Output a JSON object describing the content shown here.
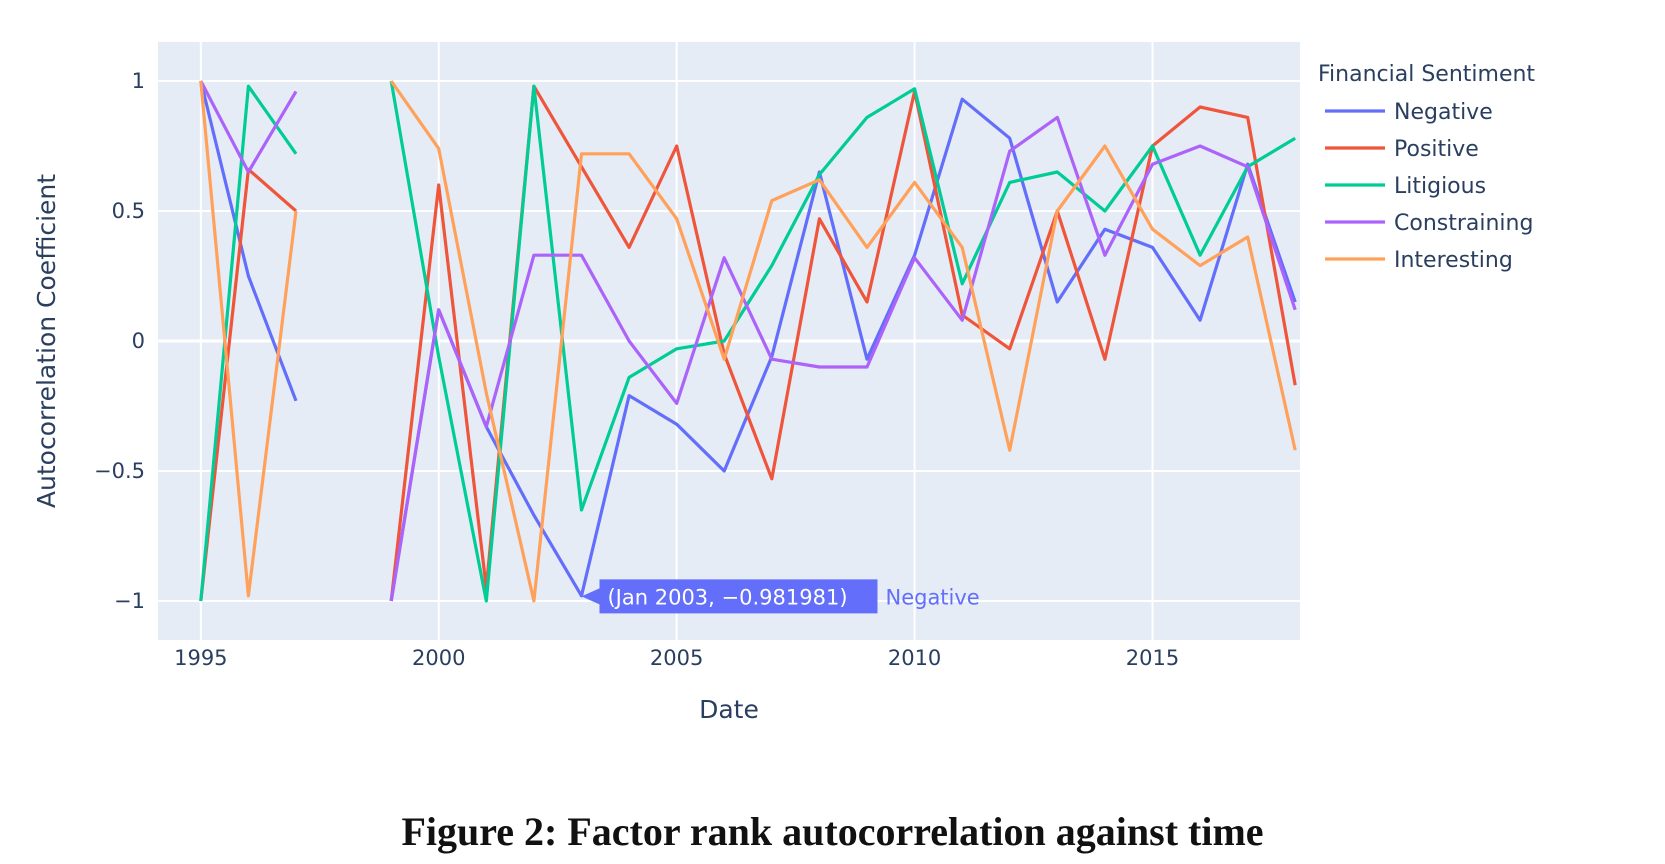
{
  "caption": "Figure 2: Factor rank autocorrelation against time",
  "chart_data": {
    "type": "line",
    "xlabel": "Date",
    "ylabel": "Autocorrelation Coefficient",
    "xlim": [
      1994.1,
      2018.1
    ],
    "ylim": [
      -1.15,
      1.15
    ],
    "xticks": [
      1995,
      2000,
      2005,
      2010,
      2015
    ],
    "xtick_labels": [
      "1995",
      "2000",
      "2005",
      "2010",
      "2015"
    ],
    "yticks": [
      1,
      0.5,
      0,
      -0.5,
      -1
    ],
    "ytick_labels": [
      "1",
      "0.5",
      "0",
      "−0.5",
      "−1"
    ],
    "grid": true,
    "legend": {
      "title": "Financial Sentiment",
      "position": "right"
    },
    "x": [
      1995,
      1996,
      1997,
      1998,
      1999,
      2000,
      2001,
      2002,
      2003,
      2004,
      2005,
      2006,
      2007,
      2008,
      2009,
      2010,
      2011,
      2012,
      2013,
      2014,
      2015,
      2016,
      2017,
      2018
    ],
    "series": [
      {
        "name": "Negative",
        "color": "#636efa",
        "values": [
          1.0,
          0.25,
          -0.23,
          null,
          -1.0,
          0.12,
          -0.33,
          -0.67,
          -0.98,
          -0.21,
          -0.32,
          -0.5,
          -0.06,
          0.65,
          -0.07,
          0.33,
          0.93,
          0.78,
          0.15,
          0.43,
          0.36,
          0.08,
          0.68,
          0.15
        ]
      },
      {
        "name": "Positive",
        "color": "#ef553b",
        "values": [
          -1.0,
          0.66,
          0.5,
          null,
          -1.0,
          0.6,
          -0.95,
          0.98,
          0.67,
          0.36,
          0.75,
          -0.05,
          -0.53,
          0.47,
          0.15,
          0.96,
          0.1,
          -0.03,
          0.5,
          -0.07,
          0.75,
          0.9,
          0.86,
          -0.17
        ]
      },
      {
        "name": "Litigious",
        "color": "#00cc96",
        "values": [
          -1.0,
          0.98,
          0.72,
          null,
          1.0,
          -0.06,
          -1.0,
          0.98,
          -0.65,
          -0.14,
          -0.03,
          0.0,
          0.29,
          0.64,
          0.86,
          0.97,
          0.22,
          0.61,
          0.65,
          0.5,
          0.75,
          0.33,
          0.67,
          0.78
        ]
      },
      {
        "name": "Constraining",
        "color": "#ab63fa",
        "values": [
          1.0,
          0.65,
          0.96,
          null,
          -1.0,
          0.12,
          -0.33,
          0.33,
          0.33,
          0.0,
          -0.24,
          0.32,
          -0.07,
          -0.1,
          -0.1,
          0.32,
          0.08,
          0.73,
          0.86,
          0.33,
          0.68,
          0.75,
          0.67,
          0.12
        ]
      },
      {
        "name": "Interesting",
        "color": "#ffa15a",
        "values": [
          1.0,
          -0.98,
          0.5,
          null,
          1.0,
          0.74,
          -0.2,
          -1.0,
          0.72,
          0.72,
          0.47,
          -0.07,
          0.54,
          0.62,
          0.36,
          0.61,
          0.36,
          -0.42,
          0.5,
          0.75,
          0.43,
          0.29,
          0.4,
          -0.42
        ]
      }
    ],
    "hover": {
      "text": "(Jan 2003, −0.981981)",
      "series": "Negative",
      "x": 2003,
      "y": -0.981981,
      "color": "#636efa"
    }
  }
}
